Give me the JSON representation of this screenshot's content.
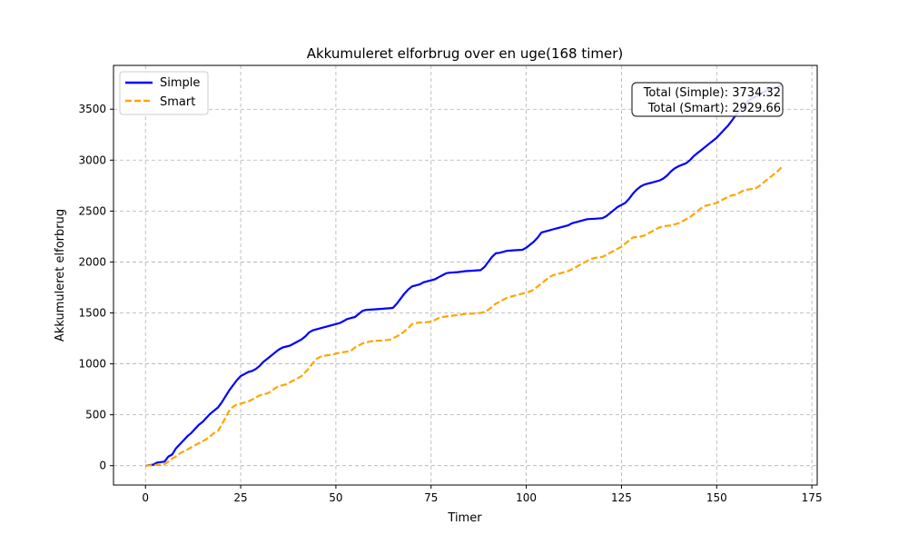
{
  "chart_data": {
    "type": "line",
    "title": "Akkumuleret elforbrug over en uge(168 timer)",
    "xlabel": "Timer",
    "ylabel": "Akkumuleret elforbrug",
    "xlim": [
      -8.4,
      176.4
    ],
    "ylim": [
      -190,
      3930
    ],
    "xticks": [
      0,
      25,
      50,
      75,
      100,
      125,
      150,
      175
    ],
    "yticks": [
      0,
      500,
      1000,
      1500,
      2000,
      2500,
      3000,
      3500
    ],
    "grid": true,
    "legend_position": "top-left",
    "annotation": {
      "line1": "Total (Simple): 3734.32",
      "line2": "Total (Smart): 2929.66",
      "position": "top-right"
    },
    "series": [
      {
        "name": "Simple",
        "color": "#0000ff",
        "style": "solid",
        "points": [
          [
            0,
            0
          ],
          [
            2,
            10
          ],
          [
            3,
            30
          ],
          [
            5,
            40
          ],
          [
            6,
            90
          ],
          [
            7,
            110
          ],
          [
            8,
            170
          ],
          [
            9,
            210
          ],
          [
            10,
            250
          ],
          [
            11,
            290
          ],
          [
            12,
            320
          ],
          [
            13,
            360
          ],
          [
            14,
            400
          ],
          [
            15,
            430
          ],
          [
            16,
            470
          ],
          [
            17,
            510
          ],
          [
            18,
            540
          ],
          [
            19,
            570
          ],
          [
            20,
            620
          ],
          [
            21,
            680
          ],
          [
            22,
            740
          ],
          [
            23,
            790
          ],
          [
            24,
            840
          ],
          [
            25,
            880
          ],
          [
            26,
            900
          ],
          [
            27,
            920
          ],
          [
            28,
            930
          ],
          [
            29,
            950
          ],
          [
            30,
            980
          ],
          [
            31,
            1020
          ],
          [
            32,
            1050
          ],
          [
            33,
            1080
          ],
          [
            34,
            1110
          ],
          [
            35,
            1140
          ],
          [
            36,
            1160
          ],
          [
            37,
            1170
          ],
          [
            38,
            1180
          ],
          [
            39,
            1200
          ],
          [
            40,
            1220
          ],
          [
            41,
            1240
          ],
          [
            42,
            1270
          ],
          [
            43,
            1310
          ],
          [
            44,
            1330
          ],
          [
            45,
            1340
          ],
          [
            46,
            1350
          ],
          [
            47,
            1360
          ],
          [
            48,
            1370
          ],
          [
            49,
            1380
          ],
          [
            50,
            1390
          ],
          [
            51,
            1400
          ],
          [
            52,
            1420
          ],
          [
            53,
            1440
          ],
          [
            54,
            1450
          ],
          [
            55,
            1460
          ],
          [
            56,
            1490
          ],
          [
            57,
            1520
          ],
          [
            58,
            1530
          ],
          [
            60,
            1535
          ],
          [
            62,
            1540
          ],
          [
            64,
            1545
          ],
          [
            65,
            1550
          ],
          [
            66,
            1590
          ],
          [
            67,
            1640
          ],
          [
            68,
            1690
          ],
          [
            69,
            1730
          ],
          [
            70,
            1760
          ],
          [
            71,
            1770
          ],
          [
            72,
            1780
          ],
          [
            73,
            1800
          ],
          [
            74,
            1810
          ],
          [
            75,
            1820
          ],
          [
            76,
            1830
          ],
          [
            77,
            1850
          ],
          [
            78,
            1870
          ],
          [
            79,
            1890
          ],
          [
            80,
            1895
          ],
          [
            82,
            1900
          ],
          [
            84,
            1910
          ],
          [
            86,
            1915
          ],
          [
            88,
            1920
          ],
          [
            89,
            1950
          ],
          [
            90,
            2000
          ],
          [
            91,
            2050
          ],
          [
            92,
            2085
          ],
          [
            93,
            2090
          ],
          [
            94,
            2100
          ],
          [
            95,
            2110
          ],
          [
            97,
            2115
          ],
          [
            99,
            2120
          ],
          [
            100,
            2140
          ],
          [
            101,
            2170
          ],
          [
            102,
            2200
          ],
          [
            103,
            2240
          ],
          [
            104,
            2290
          ],
          [
            105,
            2300
          ],
          [
            106,
            2310
          ],
          [
            107,
            2320
          ],
          [
            108,
            2330
          ],
          [
            109,
            2340
          ],
          [
            110,
            2350
          ],
          [
            111,
            2360
          ],
          [
            112,
            2380
          ],
          [
            113,
            2390
          ],
          [
            114,
            2400
          ],
          [
            115,
            2410
          ],
          [
            116,
            2420
          ],
          [
            118,
            2425
          ],
          [
            120,
            2430
          ],
          [
            121,
            2450
          ],
          [
            122,
            2480
          ],
          [
            123,
            2510
          ],
          [
            124,
            2540
          ],
          [
            125,
            2560
          ],
          [
            126,
            2580
          ],
          [
            127,
            2620
          ],
          [
            128,
            2670
          ],
          [
            129,
            2710
          ],
          [
            130,
            2740
          ],
          [
            131,
            2760
          ],
          [
            132,
            2770
          ],
          [
            133,
            2780
          ],
          [
            134,
            2790
          ],
          [
            135,
            2800
          ],
          [
            136,
            2820
          ],
          [
            137,
            2850
          ],
          [
            138,
            2890
          ],
          [
            139,
            2920
          ],
          [
            140,
            2940
          ],
          [
            141,
            2955
          ],
          [
            142,
            2970
          ],
          [
            143,
            3000
          ],
          [
            144,
            3040
          ],
          [
            145,
            3070
          ],
          [
            146,
            3100
          ],
          [
            147,
            3130
          ],
          [
            148,
            3160
          ],
          [
            149,
            3190
          ],
          [
            150,
            3220
          ],
          [
            151,
            3260
          ],
          [
            152,
            3300
          ],
          [
            153,
            3340
          ],
          [
            154,
            3390
          ],
          [
            155,
            3440
          ],
          [
            156,
            3490
          ],
          [
            157,
            3530
          ],
          [
            158,
            3570
          ],
          [
            159,
            3600
          ],
          [
            160,
            3620
          ],
          [
            161,
            3640
          ],
          [
            162,
            3660
          ],
          [
            163,
            3680
          ],
          [
            164,
            3700
          ],
          [
            165,
            3710
          ],
          [
            166,
            3720
          ],
          [
            167,
            3734.32
          ]
        ]
      },
      {
        "name": "Smart",
        "color": "#ffa500",
        "style": "dashed",
        "points": [
          [
            0,
            0
          ],
          [
            2,
            5
          ],
          [
            4,
            10
          ],
          [
            5,
            15
          ],
          [
            6,
            40
          ],
          [
            7,
            70
          ],
          [
            8,
            90
          ],
          [
            9,
            120
          ],
          [
            10,
            140
          ],
          [
            11,
            160
          ],
          [
            12,
            180
          ],
          [
            13,
            200
          ],
          [
            14,
            220
          ],
          [
            15,
            240
          ],
          [
            16,
            260
          ],
          [
            17,
            290
          ],
          [
            18,
            320
          ],
          [
            19,
            340
          ],
          [
            20,
            400
          ],
          [
            21,
            470
          ],
          [
            22,
            540
          ],
          [
            23,
            580
          ],
          [
            24,
            600
          ],
          [
            25,
            610
          ],
          [
            26,
            620
          ],
          [
            27,
            630
          ],
          [
            28,
            650
          ],
          [
            29,
            670
          ],
          [
            30,
            690
          ],
          [
            31,
            700
          ],
          [
            32,
            710
          ],
          [
            33,
            730
          ],
          [
            34,
            760
          ],
          [
            35,
            780
          ],
          [
            36,
            790
          ],
          [
            37,
            800
          ],
          [
            38,
            820
          ],
          [
            39,
            840
          ],
          [
            40,
            860
          ],
          [
            41,
            880
          ],
          [
            42,
            920
          ],
          [
            43,
            960
          ],
          [
            44,
            1010
          ],
          [
            45,
            1050
          ],
          [
            46,
            1070
          ],
          [
            47,
            1080
          ],
          [
            48,
            1085
          ],
          [
            49,
            1090
          ],
          [
            50,
            1100
          ],
          [
            51,
            1110
          ],
          [
            52,
            1115
          ],
          [
            53,
            1120
          ],
          [
            54,
            1130
          ],
          [
            55,
            1160
          ],
          [
            56,
            1180
          ],
          [
            57,
            1200
          ],
          [
            58,
            1210
          ],
          [
            59,
            1220
          ],
          [
            60,
            1225
          ],
          [
            62,
            1230
          ],
          [
            64,
            1235
          ],
          [
            65,
            1250
          ],
          [
            66,
            1270
          ],
          [
            67,
            1290
          ],
          [
            68,
            1320
          ],
          [
            69,
            1350
          ],
          [
            70,
            1390
          ],
          [
            71,
            1400
          ],
          [
            72,
            1405
          ],
          [
            74,
            1410
          ],
          [
            75,
            1415
          ],
          [
            76,
            1430
          ],
          [
            77,
            1450
          ],
          [
            78,
            1460
          ],
          [
            79,
            1465
          ],
          [
            80,
            1470
          ],
          [
            82,
            1480
          ],
          [
            84,
            1490
          ],
          [
            86,
            1495
          ],
          [
            88,
            1500
          ],
          [
            89,
            1510
          ],
          [
            90,
            1530
          ],
          [
            91,
            1560
          ],
          [
            92,
            1590
          ],
          [
            93,
            1610
          ],
          [
            94,
            1630
          ],
          [
            95,
            1650
          ],
          [
            96,
            1660
          ],
          [
            97,
            1670
          ],
          [
            98,
            1680
          ],
          [
            99,
            1690
          ],
          [
            100,
            1700
          ],
          [
            101,
            1710
          ],
          [
            102,
            1730
          ],
          [
            103,
            1760
          ],
          [
            104,
            1790
          ],
          [
            105,
            1820
          ],
          [
            106,
            1850
          ],
          [
            107,
            1870
          ],
          [
            108,
            1880
          ],
          [
            109,
            1890
          ],
          [
            110,
            1900
          ],
          [
            111,
            1910
          ],
          [
            112,
            1930
          ],
          [
            113,
            1950
          ],
          [
            114,
            1970
          ],
          [
            115,
            1990
          ],
          [
            116,
            2010
          ],
          [
            117,
            2030
          ],
          [
            118,
            2040
          ],
          [
            119,
            2045
          ],
          [
            120,
            2050
          ],
          [
            121,
            2070
          ],
          [
            122,
            2090
          ],
          [
            123,
            2110
          ],
          [
            124,
            2130
          ],
          [
            125,
            2150
          ],
          [
            126,
            2180
          ],
          [
            127,
            2210
          ],
          [
            128,
            2240
          ],
          [
            129,
            2245
          ],
          [
            130,
            2250
          ],
          [
            131,
            2260
          ],
          [
            132,
            2280
          ],
          [
            133,
            2300
          ],
          [
            134,
            2320
          ],
          [
            135,
            2340
          ],
          [
            136,
            2350
          ],
          [
            137,
            2355
          ],
          [
            138,
            2360
          ],
          [
            139,
            2370
          ],
          [
            140,
            2380
          ],
          [
            141,
            2400
          ],
          [
            142,
            2420
          ],
          [
            143,
            2440
          ],
          [
            144,
            2470
          ],
          [
            145,
            2500
          ],
          [
            146,
            2530
          ],
          [
            147,
            2550
          ],
          [
            148,
            2560
          ],
          [
            149,
            2570
          ],
          [
            150,
            2580
          ],
          [
            151,
            2600
          ],
          [
            152,
            2620
          ],
          [
            153,
            2640
          ],
          [
            154,
            2655
          ],
          [
            155,
            2660
          ],
          [
            156,
            2680
          ],
          [
            157,
            2700
          ],
          [
            158,
            2710
          ],
          [
            159,
            2715
          ],
          [
            160,
            2720
          ],
          [
            161,
            2740
          ],
          [
            162,
            2770
          ],
          [
            163,
            2800
          ],
          [
            164,
            2830
          ],
          [
            165,
            2860
          ],
          [
            166,
            2890
          ],
          [
            167,
            2929.66
          ]
        ]
      }
    ]
  }
}
